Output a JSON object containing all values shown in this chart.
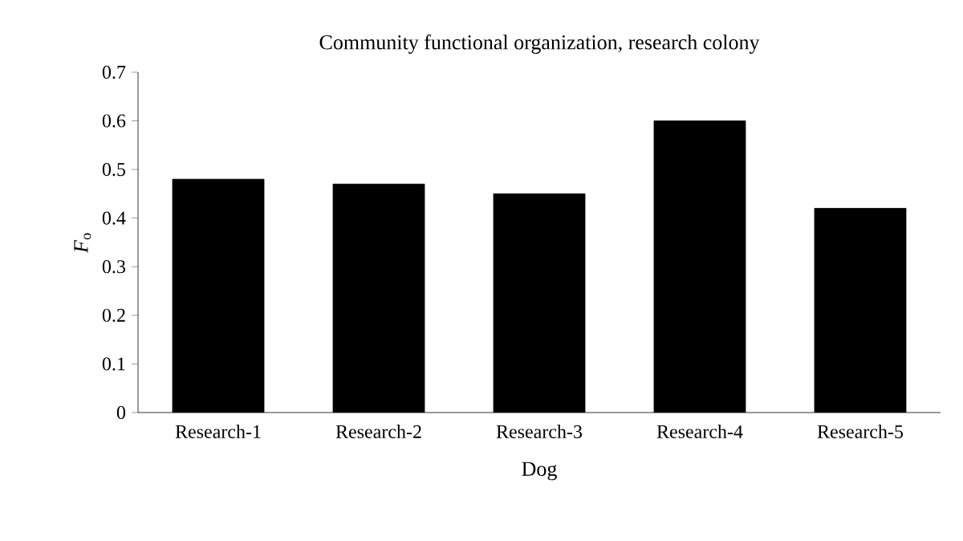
{
  "chart_data": {
    "type": "bar",
    "title": "Community functional organization, research colony",
    "xlabel": "Dog",
    "ylabel": "*F*$_{o}$",
    "categories": [
      "Research-1",
      "Research-2",
      "Research-3",
      "Research-4",
      "Research-5"
    ],
    "values": [
      0.48,
      0.47,
      0.45,
      0.6,
      0.42
    ],
    "color": "#000000",
    "ylim": [
      0,
      0.7
    ],
    "yticks": [
      0,
      0.1,
      0.2,
      0.3,
      0.4,
      0.5,
      0.6,
      0.7
    ],
    "grid": false
  }
}
